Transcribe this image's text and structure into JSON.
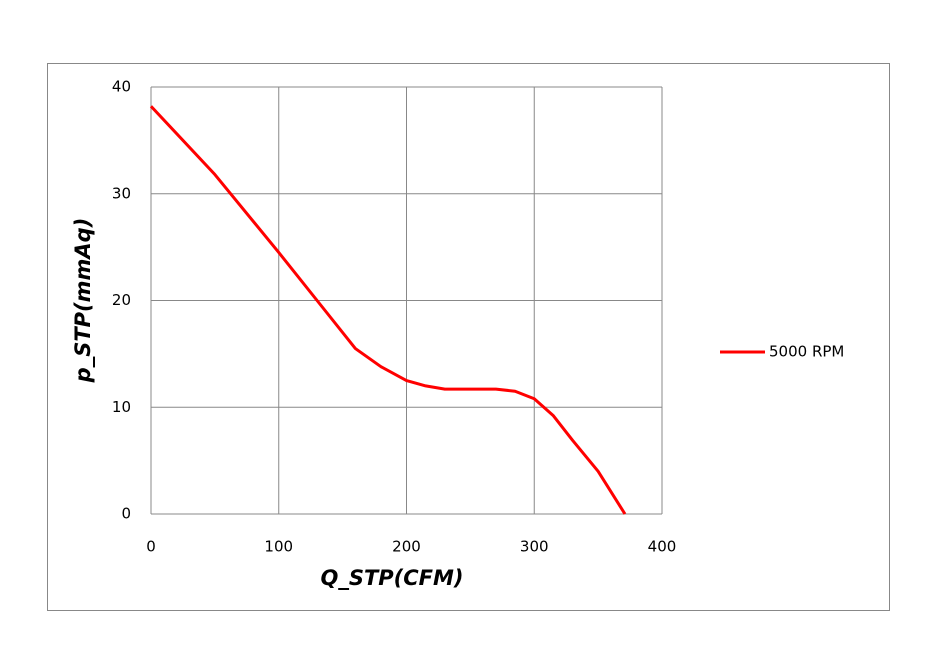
{
  "chart_data": {
    "type": "line",
    "x_label": "Q_STP(CFM)",
    "y_label": "p_STP(mmAq)",
    "series": [
      {
        "name": "5000 RPM",
        "color": "#ff0000",
        "x": [
          0,
          50,
          100,
          130,
          160,
          180,
          200,
          215,
          230,
          250,
          270,
          285,
          300,
          315,
          330,
          350,
          371
        ],
        "values": [
          38.2,
          31.8,
          24.5,
          20,
          15.5,
          13.8,
          12.5,
          12,
          11.7,
          11.7,
          11.7,
          11.5,
          10.8,
          9.2,
          6.9,
          4,
          0
        ]
      }
    ],
    "xlim": [
      0,
      400
    ],
    "xticks": [
      0,
      100,
      200,
      300,
      400
    ],
    "ylim": [
      0,
      40
    ],
    "yticks": [
      0,
      10,
      20,
      30,
      40
    ],
    "grid": true,
    "legend": "right"
  }
}
